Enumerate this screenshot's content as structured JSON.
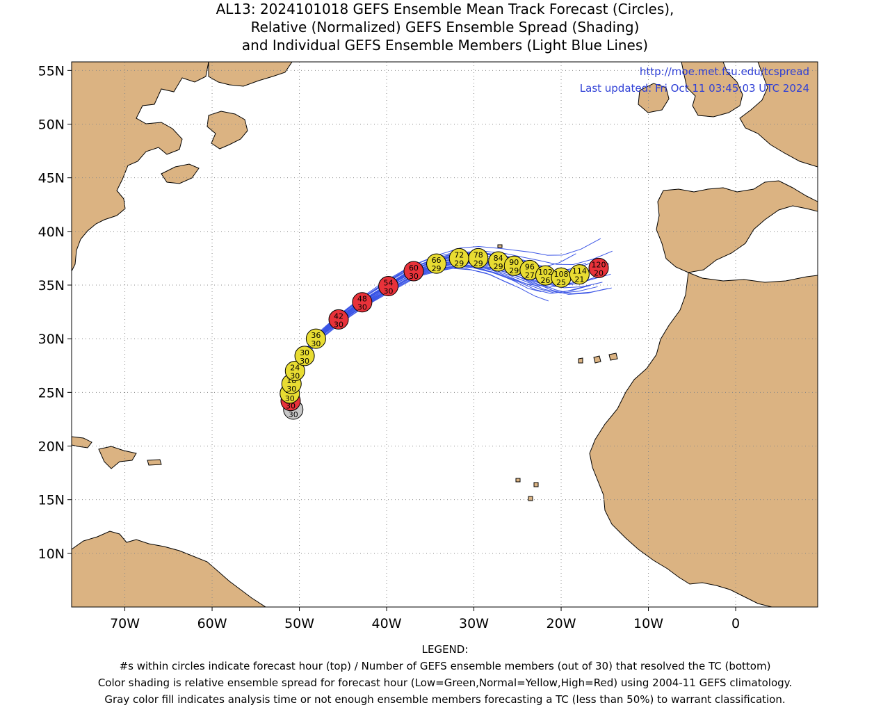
{
  "title": {
    "line1": "AL13: 2024101018 GEFS Ensemble Mean Track Forecast (Circles),",
    "line2": "Relative (Normalized) GEFS Ensemble Spread (Shading)",
    "line3": "and Individual GEFS Ensemble Members (Light Blue Lines)"
  },
  "credit": {
    "url": "http://moe.met.fsu.edu/tcspread",
    "updated": "Last updated: Fri Oct 11 03:45:03 UTC 2024"
  },
  "axes": {
    "lat_labels": [
      "55N",
      "50N",
      "45N",
      "40N",
      "35N",
      "30N",
      "25N",
      "20N",
      "15N",
      "10N"
    ],
    "lat_values": [
      55,
      50,
      45,
      40,
      35,
      30,
      25,
      20,
      15,
      10
    ],
    "lon_labels": [
      "70W",
      "60W",
      "50W",
      "40W",
      "30W",
      "20W",
      "10W",
      "0"
    ],
    "lon_values": [
      -70,
      -60,
      -50,
      -40,
      -30,
      -20,
      -10,
      0
    ],
    "lon_range": [
      -76.1,
      9.4
    ],
    "lat_range": [
      5.0,
      55.8
    ],
    "grid": "dotted"
  },
  "colors": {
    "land": "#dbb382",
    "ocean": "#ffffff",
    "member_track": "#3b55e6",
    "spread_low": "#3cb043",
    "spread_normal": "#e8dc32",
    "spread_high": "#e8323a",
    "analysis_gray": "#c8c8c8"
  },
  "track_points": [
    {
      "hour": "0",
      "members": "30",
      "lon": -50.7,
      "lat": 23.4,
      "shade": "gray"
    },
    {
      "hour": "6",
      "members": "30",
      "lon": -51.0,
      "lat": 24.2,
      "shade": "red"
    },
    {
      "hour": "12",
      "members": "30",
      "lon": -51.1,
      "lat": 24.9,
      "shade": "yellow"
    },
    {
      "hour": "18",
      "members": "30",
      "lon": -50.9,
      "lat": 25.8,
      "shade": "yellow"
    },
    {
      "hour": "24",
      "members": "30",
      "lon": -50.5,
      "lat": 27.0,
      "shade": "yellow"
    },
    {
      "hour": "30",
      "members": "30",
      "lon": -49.4,
      "lat": 28.4,
      "shade": "yellow"
    },
    {
      "hour": "36",
      "members": "30",
      "lon": -48.1,
      "lat": 30.0,
      "shade": "yellow"
    },
    {
      "hour": "42",
      "members": "30",
      "lon": -45.5,
      "lat": 31.8,
      "shade": "red"
    },
    {
      "hour": "48",
      "members": "30",
      "lon": -42.8,
      "lat": 33.4,
      "shade": "red"
    },
    {
      "hour": "54",
      "members": "30",
      "lon": -39.8,
      "lat": 34.9,
      "shade": "red"
    },
    {
      "hour": "60",
      "members": "30",
      "lon": -36.9,
      "lat": 36.3,
      "shade": "red"
    },
    {
      "hour": "66",
      "members": "29",
      "lon": -34.3,
      "lat": 37.0,
      "shade": "yellow"
    },
    {
      "hour": "72",
      "members": "29",
      "lon": -31.7,
      "lat": 37.5,
      "shade": "yellow"
    },
    {
      "hour": "78",
      "members": "29",
      "lon": -29.5,
      "lat": 37.5,
      "shade": "yellow"
    },
    {
      "hour": "84",
      "members": "29",
      "lon": -27.2,
      "lat": 37.2,
      "shade": "yellow"
    },
    {
      "hour": "90",
      "members": "29",
      "lon": -25.4,
      "lat": 36.8,
      "shade": "yellow"
    },
    {
      "hour": "96",
      "members": "27",
      "lon": -23.6,
      "lat": 36.4,
      "shade": "yellow"
    },
    {
      "hour": "102",
      "members": "26",
      "lon": -21.8,
      "lat": 35.9,
      "shade": "yellow"
    },
    {
      "hour": "108",
      "members": "25",
      "lon": -20.0,
      "lat": 35.7,
      "shade": "yellow"
    },
    {
      "hour": "114",
      "members": "21",
      "lon": -17.9,
      "lat": 36.0,
      "shade": "yellow"
    },
    {
      "hour": "120",
      "members": "20",
      "lon": -15.7,
      "lat": 36.6,
      "shade": "red"
    }
  ],
  "legend": {
    "heading": "LEGEND:",
    "line1": "#s within circles indicate forecast hour (top) / Number of GEFS ensemble members (out of 30) that resolved the TC (bottom)",
    "line2": "Color shading is relative ensemble spread for forecast hour (Low=Green,Normal=Yellow,High=Red) using 2004-11 GEFS climatology.",
    "line3": "Gray color fill indicates analysis time or not enough ensemble members forecasting a TC (less than 50%) to warrant classification."
  }
}
